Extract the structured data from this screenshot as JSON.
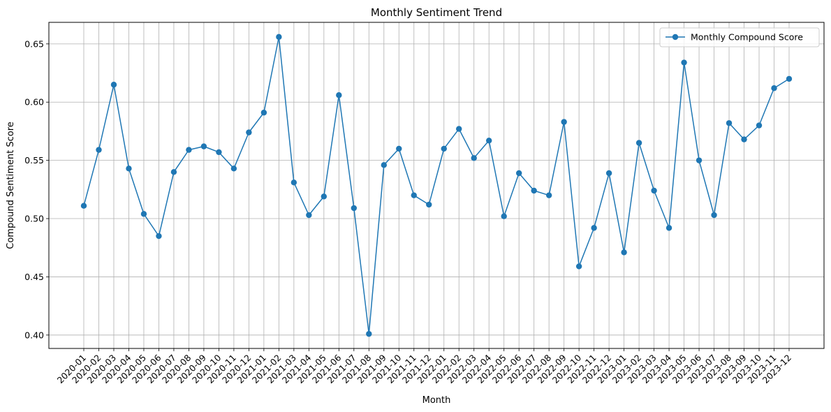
{
  "chart_data": {
    "type": "line",
    "title": "Monthly Sentiment Trend",
    "xlabel": "Month",
    "ylabel": "Compound Sentiment Score",
    "ylim": [
      0.3885,
      0.6685
    ],
    "yticks": [
      0.4,
      0.45,
      0.5,
      0.55,
      0.6,
      0.65
    ],
    "ytick_labels": [
      "0.40",
      "0.45",
      "0.50",
      "0.55",
      "0.60",
      "0.65"
    ],
    "grid": true,
    "legend_position": "top-right",
    "categories": [
      "2020-01",
      "2020-02",
      "2020-03",
      "2020-04",
      "2020-05",
      "2020-06",
      "2020-07",
      "2020-08",
      "2020-09",
      "2020-10",
      "2020-11",
      "2020-12",
      "2021-01",
      "2021-02",
      "2021-03",
      "2021-04",
      "2021-05",
      "2021-06",
      "2021-07",
      "2021-08",
      "2021-09",
      "2021-10",
      "2021-11",
      "2021-12",
      "2022-01",
      "2022-02",
      "2022-03",
      "2022-04",
      "2022-05",
      "2022-06",
      "2022-07",
      "2022-08",
      "2022-09",
      "2022-10",
      "2022-11",
      "2022-12",
      "2023-01",
      "2023-02",
      "2023-03",
      "2023-04",
      "2023-05",
      "2023-06",
      "2023-07",
      "2023-08",
      "2023-09",
      "2023-10",
      "2023-11",
      "2023-12"
    ],
    "series": [
      {
        "name": "Monthly Compound Score",
        "color": "#1f77b4",
        "values": [
          0.511,
          0.559,
          0.615,
          0.543,
          0.504,
          0.485,
          0.54,
          0.559,
          0.562,
          0.557,
          0.543,
          0.574,
          0.591,
          0.656,
          0.531,
          0.503,
          0.519,
          0.606,
          0.509,
          0.401,
          0.546,
          0.56,
          0.52,
          0.512,
          0.56,
          0.577,
          0.552,
          0.567,
          0.502,
          0.539,
          0.524,
          0.52,
          0.583,
          0.459,
          0.492,
          0.539,
          0.471,
          0.565,
          0.524,
          0.492,
          0.634,
          0.55,
          0.503,
          0.582,
          0.568,
          0.58,
          0.612,
          0.62
        ]
      }
    ]
  }
}
